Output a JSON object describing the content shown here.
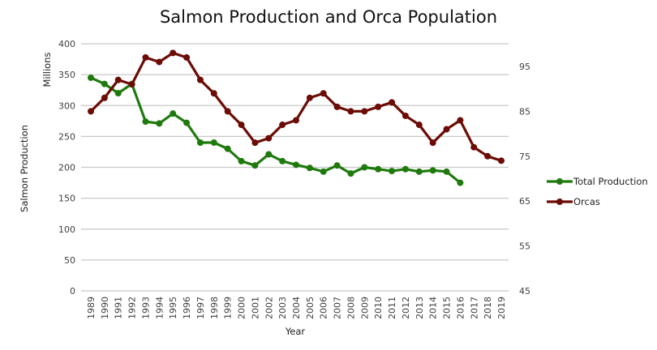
{
  "chart_data": {
    "type": "line",
    "title": "Salmon Production and Orca Population",
    "xlabel": "Year",
    "ylabel": "Salmon Production",
    "ylabel_secondary_units": "Millions",
    "ylim": [
      0,
      400
    ],
    "yticks": [
      0,
      50,
      100,
      150,
      200,
      250,
      300,
      350,
      400
    ],
    "y2lim": [
      45,
      100
    ],
    "y2ticks": [
      45,
      55,
      65,
      75,
      85,
      95
    ],
    "grid": true,
    "legend_position": "right",
    "categories": [
      "1989",
      "1990",
      "1991",
      "1992",
      "1993",
      "1994",
      "1995",
      "1996",
      "1997",
      "1998",
      "1999",
      "2000",
      "2001",
      "2002",
      "2003",
      "2004",
      "2005",
      "2006",
      "2007",
      "2008",
      "2009",
      "2010",
      "2011",
      "2012",
      "2013",
      "2014",
      "2015",
      "2016",
      "2017",
      "2018",
      "2019"
    ],
    "series": [
      {
        "name": "Total Production",
        "axis": "left",
        "color": "#1f7a0e",
        "values": [
          345,
          335,
          320,
          335,
          274,
          271,
          287,
          272,
          240,
          240,
          230,
          210,
          203,
          221,
          210,
          204,
          199,
          193,
          203,
          190,
          200,
          197,
          194,
          197,
          193,
          195,
          193,
          175,
          null,
          null,
          null
        ]
      },
      {
        "name": "Orcas",
        "axis": "right",
        "color": "#6b0c06",
        "values": [
          85,
          88,
          92,
          91,
          97,
          96,
          98,
          97,
          92,
          89,
          85,
          82,
          78,
          79,
          82,
          83,
          88,
          89,
          86,
          85,
          85,
          86,
          87,
          84,
          82,
          78,
          81,
          83,
          77,
          75,
          74
        ]
      }
    ]
  }
}
